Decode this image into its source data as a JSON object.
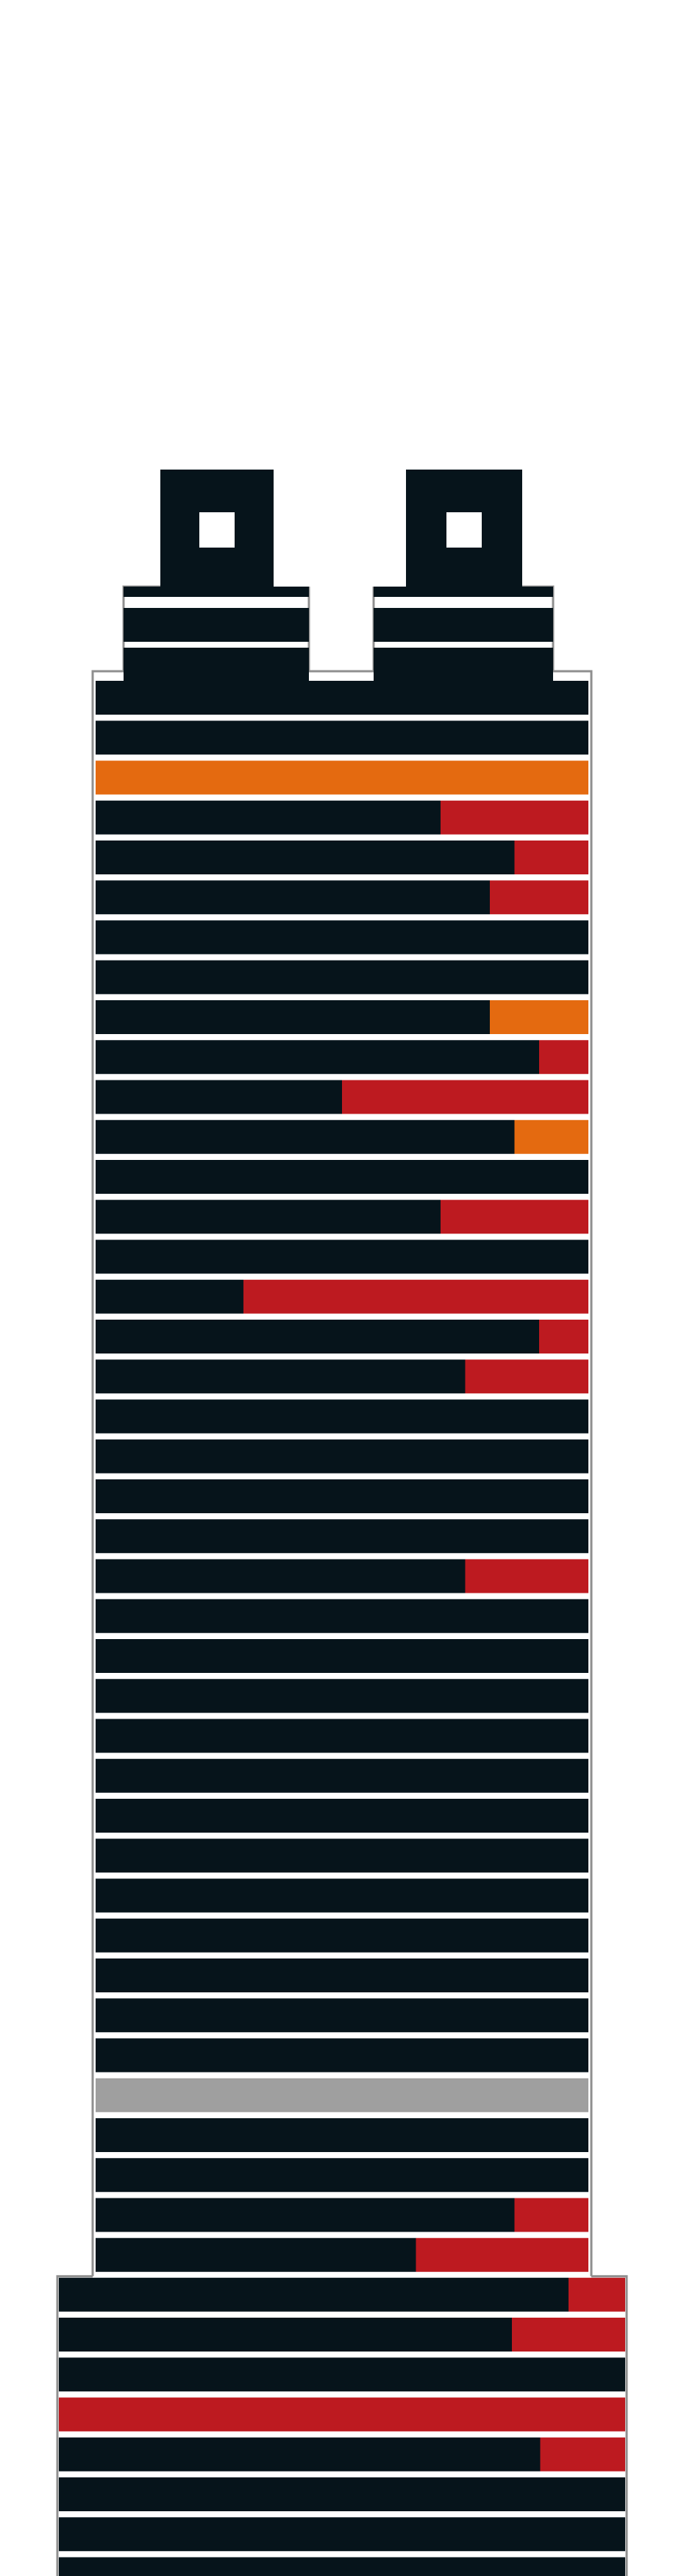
{
  "colors": {
    "background": "#ffffff",
    "floor": "#06141b",
    "red": "#bd1a20",
    "orange": "#e46a10",
    "gray": "#9f9f9f",
    "separator": "#f2f2f2",
    "outline": "#8f8f8f"
  },
  "building": {
    "spires": [
      {
        "name": "left-spire"
      },
      {
        "name": "right-spire"
      }
    ],
    "crown_floors": [
      {
        "name": "left-crown",
        "levels": 2
      },
      {
        "name": "right-crown",
        "levels": 2
      }
    ],
    "tower_floors": [
      {
        "kind": "dark"
      },
      {
        "kind": "dark"
      },
      {
        "kind": "orange-full"
      },
      {
        "kind": "split",
        "fraction": 0.7,
        "accent": "red"
      },
      {
        "kind": "split",
        "fraction": 0.85,
        "accent": "red"
      },
      {
        "kind": "split",
        "fraction": 0.8,
        "accent": "red"
      },
      {
        "kind": "dark"
      },
      {
        "kind": "dark"
      },
      {
        "kind": "split",
        "fraction": 0.8,
        "accent": "orange"
      },
      {
        "kind": "split",
        "fraction": 0.9,
        "accent": "red"
      },
      {
        "kind": "split",
        "fraction": 0.5,
        "accent": "red"
      },
      {
        "kind": "split",
        "fraction": 0.85,
        "accent": "orange"
      },
      {
        "kind": "dark"
      },
      {
        "kind": "split",
        "fraction": 0.7,
        "accent": "red"
      },
      {
        "kind": "dark"
      },
      {
        "kind": "split",
        "fraction": 0.3,
        "accent": "red"
      },
      {
        "kind": "split",
        "fraction": 0.9,
        "accent": "red"
      },
      {
        "kind": "split",
        "fraction": 0.75,
        "accent": "red"
      },
      {
        "kind": "dark"
      },
      {
        "kind": "dark"
      },
      {
        "kind": "dark"
      },
      {
        "kind": "dark"
      },
      {
        "kind": "split",
        "fraction": 0.75,
        "accent": "red"
      },
      {
        "kind": "dark"
      },
      {
        "kind": "dark"
      },
      {
        "kind": "dark"
      },
      {
        "kind": "dark"
      },
      {
        "kind": "dark"
      },
      {
        "kind": "dark"
      },
      {
        "kind": "dark"
      },
      {
        "kind": "dark"
      },
      {
        "kind": "dark"
      },
      {
        "kind": "dark"
      },
      {
        "kind": "dark"
      },
      {
        "kind": "dark"
      },
      {
        "kind": "gray-full"
      },
      {
        "kind": "dark"
      },
      {
        "kind": "dark"
      },
      {
        "kind": "split",
        "fraction": 0.85,
        "accent": "red"
      },
      {
        "kind": "split",
        "fraction": 0.65,
        "accent": "red"
      }
    ],
    "base_floors": [
      {
        "kind": "split",
        "fraction": 0.9,
        "accent": "red"
      },
      {
        "kind": "split",
        "fraction": 0.8,
        "accent": "red"
      },
      {
        "kind": "dark"
      },
      {
        "kind": "red-full"
      },
      {
        "kind": "split",
        "fraction": 0.85,
        "accent": "red"
      },
      {
        "kind": "dark"
      },
      {
        "kind": "dark"
      },
      {
        "kind": "dark"
      }
    ]
  }
}
